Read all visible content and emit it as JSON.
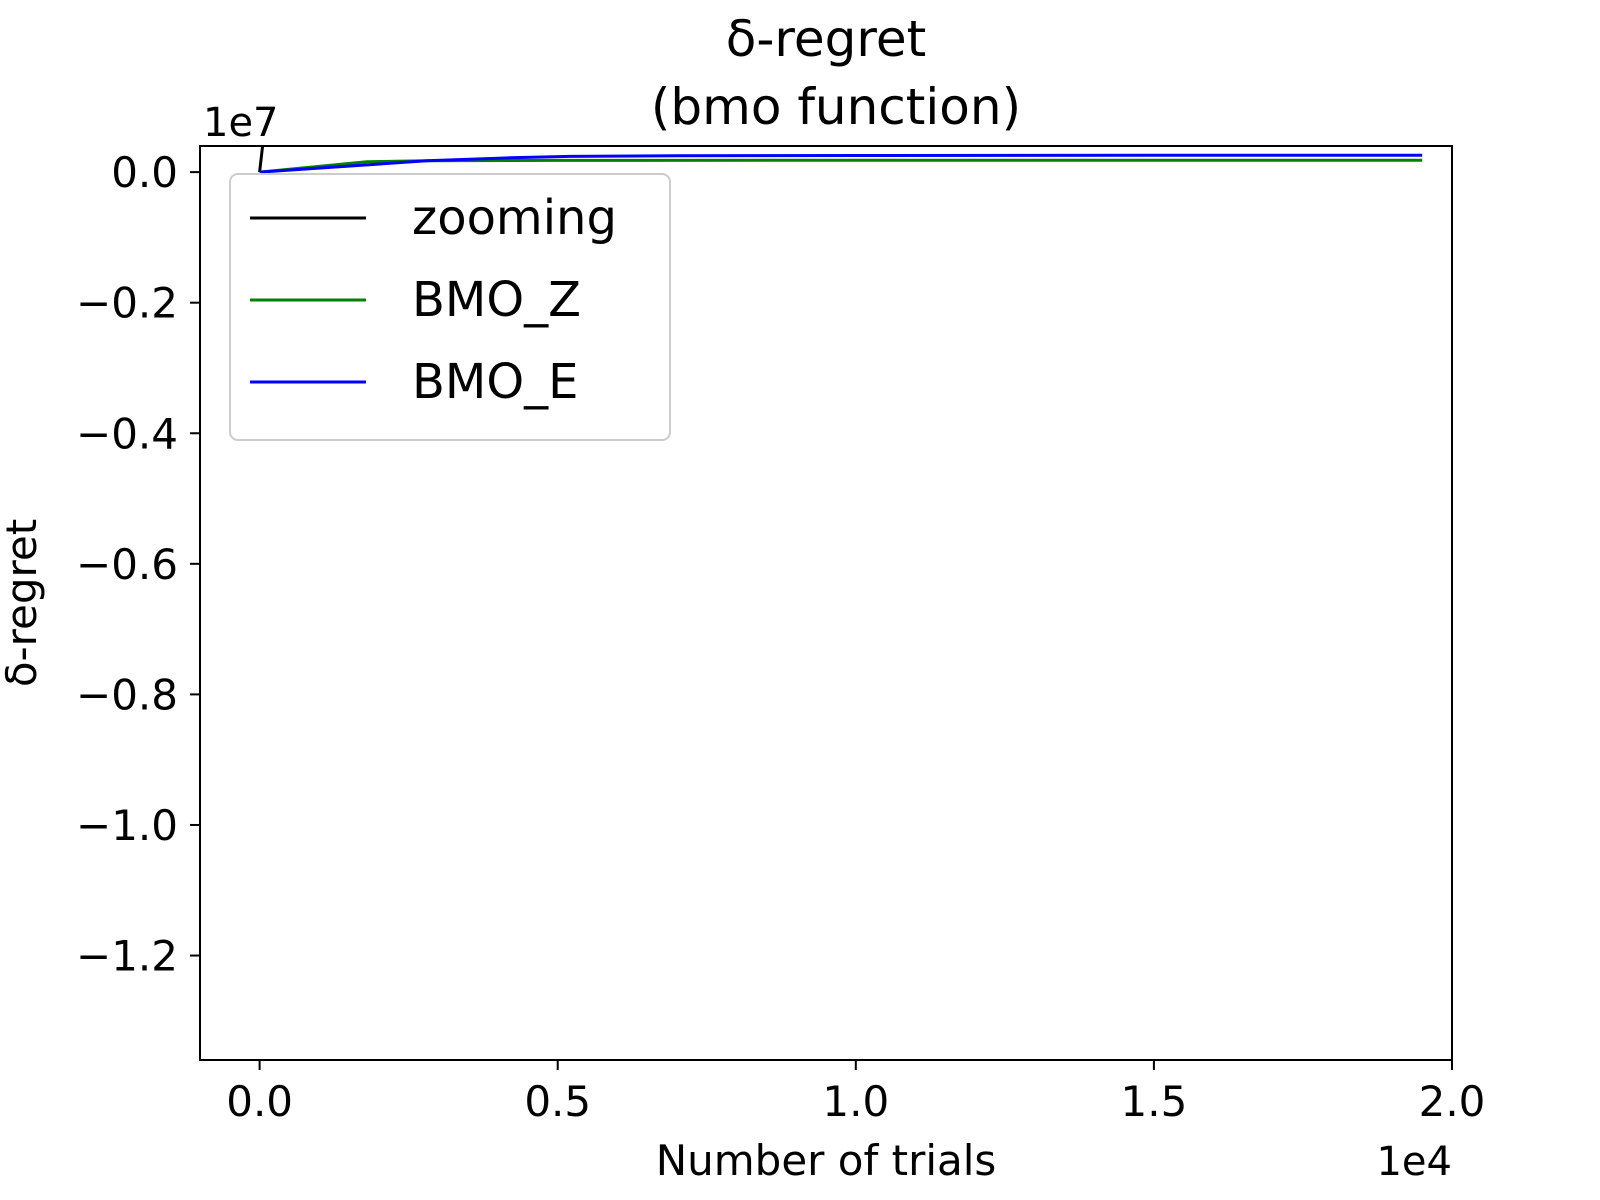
{
  "chart_data": {
    "type": "line",
    "title": "δ-regret",
    "subtitle": "(bmo function)",
    "xlabel": "Number of trials",
    "ylabel": "δ-regret",
    "x_scale_label": "1e4",
    "y_scale_label": "1e7",
    "xlim": [
      -1000,
      20000
    ],
    "ylim": [
      -13600000,
      400000
    ],
    "x_ticks": [
      0,
      5000,
      10000,
      15000,
      20000
    ],
    "x_tick_labels": [
      "0.0",
      "0.5",
      "1.0",
      "1.5",
      "2.0"
    ],
    "y_ticks": [
      0,
      -2000000,
      -4000000,
      -6000000,
      -8000000,
      -10000000,
      -12000000
    ],
    "y_tick_labels": [
      "0.0",
      "−0.2",
      "−0.4",
      "−0.6",
      "−0.8",
      "−1.0",
      "−1.2"
    ],
    "grid": false,
    "legend_position": "upper-left",
    "series": [
      {
        "name": "zooming",
        "color": "#000000",
        "x": [
          0,
          50,
          100
        ],
        "y": [
          0,
          400000,
          13000000
        ]
      },
      {
        "name": "BMO_Z",
        "color": "#008000",
        "x": [
          0,
          1800,
          2800,
          5000,
          10000,
          15000,
          19500
        ],
        "y": [
          0,
          160000,
          175000,
          180000,
          182000,
          183000,
          183000
        ]
      },
      {
        "name": "BMO_E",
        "color": "#0000ff",
        "x": [
          0,
          1800,
          2800,
          4200,
          5200,
          7000,
          10000,
          15000,
          19500
        ],
        "y": [
          0,
          110000,
          175000,
          220000,
          240000,
          250000,
          255000,
          257000,
          258000
        ]
      }
    ]
  }
}
